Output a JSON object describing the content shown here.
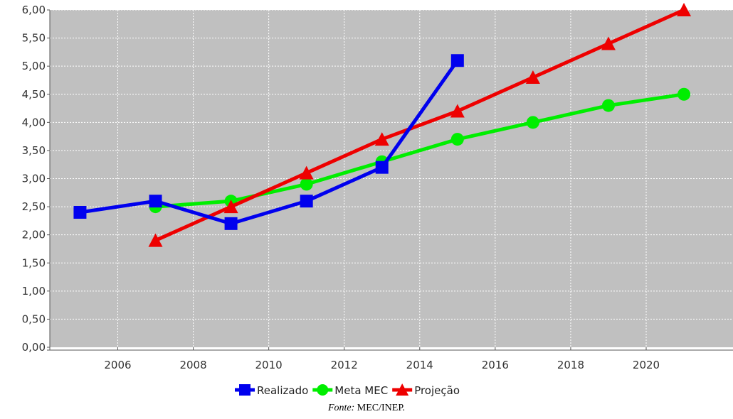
{
  "chart_data": {
    "type": "line",
    "title": "",
    "xlabel": "",
    "ylabel": "",
    "xlim": [
      2004.2,
      2022.3
    ],
    "ylim": [
      0,
      6
    ],
    "x_ticks": [
      2006,
      2008,
      2010,
      2012,
      2014,
      2016,
      2018,
      2020
    ],
    "x_tick_labels": [
      "2006",
      "2008",
      "2010",
      "2012",
      "2014",
      "2016",
      "2018",
      "2020"
    ],
    "y_ticks": [
      0,
      0.5,
      1,
      1.5,
      2,
      2.5,
      3,
      3.5,
      4,
      4.5,
      5,
      5.5,
      6
    ],
    "y_tick_labels": [
      "0,00",
      "0,50",
      "1,00",
      "1,50",
      "2,00",
      "2,50",
      "3,00",
      "3,50",
      "4,00",
      "4,50",
      "5,00",
      "5,50",
      "6,00"
    ],
    "grid": true,
    "legend_position": "bottom-center",
    "background_color": "#c0c0c0",
    "series": [
      {
        "name": "Realizado",
        "color": "#0000ee",
        "marker": "square",
        "x": [
          2005,
          2007,
          2009,
          2011,
          2013,
          2015
        ],
        "y": [
          2.4,
          2.6,
          2.2,
          2.6,
          3.2,
          5.1
        ]
      },
      {
        "name": "Meta MEC",
        "color": "#00ee00",
        "marker": "circle",
        "x": [
          2007,
          2009,
          2011,
          2013,
          2015,
          2017,
          2019,
          2021
        ],
        "y": [
          2.5,
          2.6,
          2.9,
          3.3,
          3.7,
          4.0,
          4.3,
          4.5
        ]
      },
      {
        "name": "Projeção",
        "color": "#ee0000",
        "marker": "triangle",
        "x": [
          2007,
          2009,
          2011,
          2013,
          2015,
          2017,
          2019,
          2021
        ],
        "y": [
          1.9,
          2.5,
          3.1,
          3.7,
          4.2,
          4.8,
          5.4,
          6.0
        ]
      }
    ]
  },
  "source": {
    "prefix": "Fonte:",
    "text": " MEC/INEP."
  }
}
